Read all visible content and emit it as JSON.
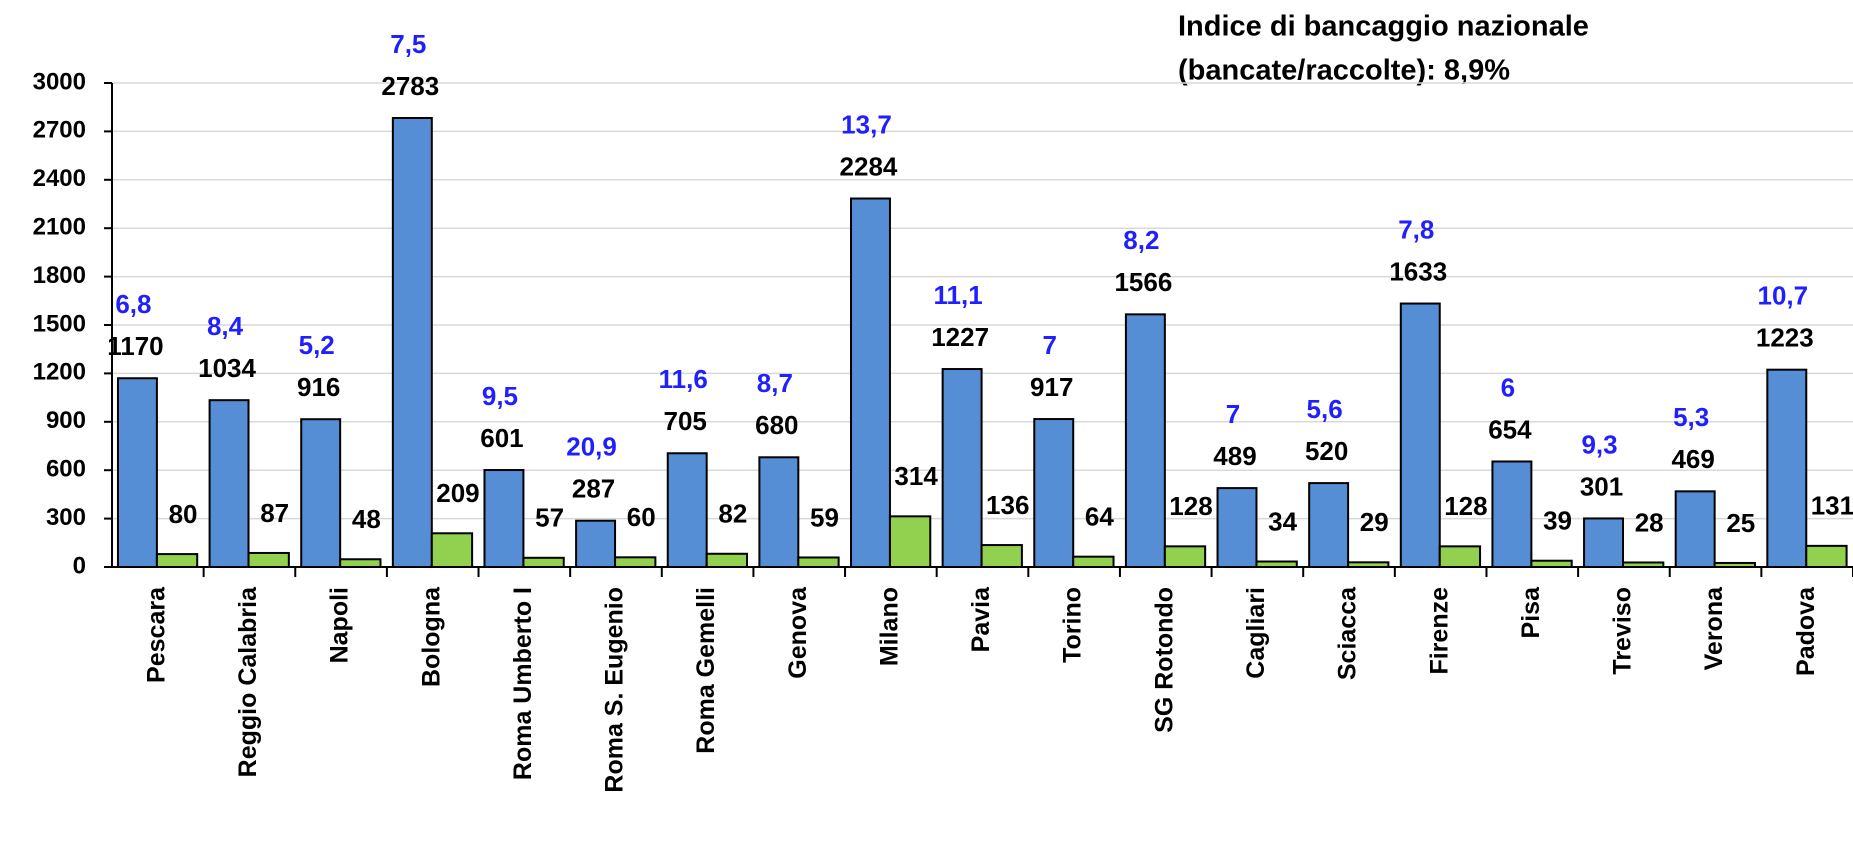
{
  "chart_data": {
    "type": "bar",
    "annotation": [
      "Indice di bancaggio nazionale",
      "(bancate/raccolte): 8,9%"
    ],
    "categories": [
      "Pescara",
      "Reggio Calabria",
      "Napoli",
      "Bologna",
      "Roma Umberto I",
      "Roma S. Eugenio",
      "Roma Gemelli",
      "Genova",
      "Milano",
      "Pavia",
      "Torino",
      "SG Rotondo",
      "Cagliari",
      "Sciacca",
      "Firenze",
      "Pisa",
      "Treviso",
      "Verona",
      "Padova"
    ],
    "series": [
      {
        "color": "#558ed5",
        "values": [
          1170,
          1034,
          916,
          2783,
          601,
          287,
          705,
          680,
          2284,
          1227,
          917,
          1566,
          489,
          520,
          1633,
          654,
          301,
          469,
          1223
        ]
      },
      {
        "color": "#92d050",
        "values": [
          80,
          87,
          48,
          209,
          57,
          60,
          82,
          59,
          314,
          136,
          64,
          128,
          34,
          29,
          128,
          39,
          28,
          25,
          131
        ]
      }
    ],
    "ratios": {
      "color": "#1f1fff",
      "values": [
        6.8,
        8.4,
        5.2,
        7.5,
        9.5,
        20.9,
        11.6,
        8.7,
        13.7,
        11.1,
        7,
        8.2,
        7,
        5.6,
        7.8,
        6,
        9.3,
        5.3,
        10.7
      ],
      "value_labels": [
        "6,8",
        "8,4",
        "5,2",
        "7,5",
        "9,5",
        "20,9",
        "11,6",
        "8,7",
        "13,7",
        "11,1",
        "7",
        "8,2",
        "7",
        "5,6",
        "7,8",
        "6",
        "9,3",
        "5,3",
        "10,7"
      ]
    },
    "ylim": [
      0,
      3000
    ],
    "yticks": [
      0,
      300,
      600,
      900,
      1200,
      1500,
      1800,
      2100,
      2400,
      2700,
      3000
    ],
    "grid": true
  }
}
